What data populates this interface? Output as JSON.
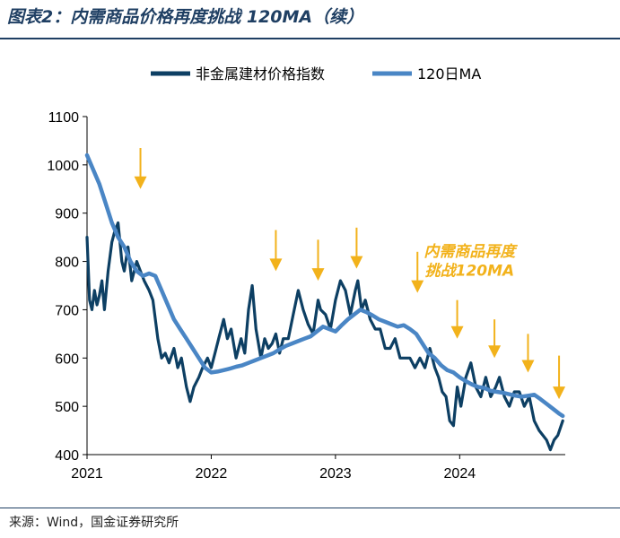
{
  "header": {
    "title": "图表2：内需商品价格再度挑战 120MA（续）"
  },
  "footer": {
    "source": "来源：Wind，国金证券研究所"
  },
  "colors": {
    "series_main": "#0d3f63",
    "series_ma": "#4a86c5",
    "arrow": "#f2b21b",
    "title": "#1f3f63"
  },
  "chart_data": {
    "type": "line",
    "title": "",
    "xlabel": "",
    "ylabel": "",
    "ylim": [
      400,
      1100
    ],
    "yticks": [
      400,
      500,
      600,
      700,
      800,
      900,
      1000,
      1100
    ],
    "xlim": [
      2021.0,
      2024.85
    ],
    "xticks": [
      {
        "value": 2021,
        "label": "2021"
      },
      {
        "value": 2022,
        "label": "2022"
      },
      {
        "value": 2023,
        "label": "2023"
      },
      {
        "value": 2024,
        "label": "2024"
      }
    ],
    "grid": false,
    "legend": "top-center",
    "series": [
      {
        "name": "非金属建材价格指数",
        "x": [
          2021.0,
          2021.02,
          2021.04,
          2021.06,
          2021.08,
          2021.1,
          2021.12,
          2021.14,
          2021.17,
          2021.2,
          2021.22,
          2021.25,
          2021.28,
          2021.3,
          2021.33,
          2021.36,
          2021.4,
          2021.43,
          2021.46,
          2021.5,
          2021.53,
          2021.57,
          2021.6,
          2021.63,
          2021.66,
          2021.7,
          2021.73,
          2021.76,
          2021.8,
          2021.83,
          2021.86,
          2021.9,
          2021.93,
          2021.97,
          2022.0,
          2022.03,
          2022.06,
          2022.1,
          2022.13,
          2022.16,
          2022.2,
          2022.24,
          2022.27,
          2022.3,
          2022.33,
          2022.36,
          2022.4,
          2022.43,
          2022.46,
          2022.49,
          2022.52,
          2022.55,
          2022.58,
          2022.62,
          2022.66,
          2022.7,
          2022.74,
          2022.78,
          2022.82,
          2022.86,
          2022.88,
          2022.92,
          2022.96,
          2023.0,
          2023.04,
          2023.08,
          2023.12,
          2023.16,
          2023.18,
          2023.21,
          2023.24,
          2023.28,
          2023.32,
          2023.36,
          2023.4,
          2023.44,
          2023.48,
          2023.52,
          2023.56,
          2023.6,
          2023.64,
          2023.68,
          2023.72,
          2023.76,
          2023.8,
          2023.83,
          2023.86,
          2023.89,
          2023.92,
          2023.95,
          2023.98,
          2024.01,
          2024.05,
          2024.09,
          2024.13,
          2024.17,
          2024.21,
          2024.25,
          2024.29,
          2024.32,
          2024.36,
          2024.4,
          2024.44,
          2024.48,
          2024.52,
          2024.56,
          2024.6,
          2024.64,
          2024.67,
          2024.7,
          2024.73,
          2024.76,
          2024.79,
          2024.83
        ],
        "y": [
          850,
          720,
          700,
          740,
          710,
          730,
          760,
          700,
          780,
          840,
          860,
          880,
          800,
          780,
          830,
          760,
          800,
          780,
          760,
          740,
          720,
          640,
          600,
          610,
          590,
          620,
          580,
          600,
          540,
          510,
          540,
          560,
          580,
          600,
          580,
          610,
          640,
          680,
          640,
          660,
          600,
          640,
          610,
          700,
          750,
          660,
          600,
          640,
          620,
          630,
          650,
          610,
          640,
          640,
          690,
          740,
          700,
          670,
          650,
          720,
          700,
          690,
          660,
          720,
          760,
          740,
          690,
          740,
          760,
          700,
          720,
          680,
          660,
          660,
          620,
          620,
          640,
          600,
          600,
          600,
          580,
          600,
          580,
          620,
          580,
          560,
          530,
          520,
          470,
          460,
          540,
          500,
          560,
          590,
          540,
          520,
          560,
          520,
          540,
          560,
          520,
          500,
          530,
          530,
          500,
          520,
          470,
          450,
          440,
          430,
          410,
          430,
          440,
          470
        ]
      },
      {
        "name": "120日MA",
        "x": [
          2021.0,
          2021.05,
          2021.1,
          2021.15,
          2021.2,
          2021.25,
          2021.3,
          2021.35,
          2021.4,
          2021.45,
          2021.5,
          2021.55,
          2021.6,
          2021.65,
          2021.7,
          2021.75,
          2021.8,
          2021.85,
          2021.9,
          2021.95,
          2022.0,
          2022.05,
          2022.1,
          2022.15,
          2022.2,
          2022.25,
          2022.3,
          2022.35,
          2022.4,
          2022.45,
          2022.5,
          2022.55,
          2022.6,
          2022.65,
          2022.7,
          2022.75,
          2022.8,
          2022.85,
          2022.9,
          2022.95,
          2023.0,
          2023.05,
          2023.1,
          2023.15,
          2023.2,
          2023.25,
          2023.3,
          2023.35,
          2023.4,
          2023.45,
          2023.5,
          2023.55,
          2023.6,
          2023.65,
          2023.7,
          2023.75,
          2023.8,
          2023.85,
          2023.9,
          2023.95,
          2024.0,
          2024.05,
          2024.1,
          2024.15,
          2024.2,
          2024.25,
          2024.3,
          2024.35,
          2024.4,
          2024.45,
          2024.5,
          2024.55,
          2024.6,
          2024.65,
          2024.7,
          2024.75,
          2024.8,
          2024.83
        ],
        "y": [
          1020,
          990,
          960,
          920,
          880,
          850,
          830,
          800,
          780,
          770,
          775,
          770,
          740,
          710,
          680,
          660,
          640,
          620,
          600,
          580,
          570,
          572,
          575,
          578,
          582,
          585,
          590,
          595,
          600,
          605,
          610,
          618,
          625,
          630,
          635,
          640,
          645,
          655,
          665,
          660,
          655,
          668,
          680,
          690,
          700,
          695,
          688,
          680,
          675,
          670,
          665,
          668,
          660,
          650,
          630,
          610,
          600,
          585,
          575,
          570,
          560,
          552,
          545,
          540,
          538,
          532,
          530,
          528,
          525,
          522,
          520,
          522,
          524,
          515,
          505,
          495,
          485,
          480
        ]
      }
    ],
    "annotations": [
      {
        "text": "内需商品再度",
        "x": 2024.08,
        "y": 810
      },
      {
        "text": "挑战120MA",
        "x": 2024.08,
        "y": 770
      }
    ],
    "arrows": [
      {
        "x": 2021.43,
        "y_top": 1035,
        "y_tip": 950
      },
      {
        "x": 2022.52,
        "y_top": 865,
        "y_tip": 780
      },
      {
        "x": 2022.86,
        "y_top": 845,
        "y_tip": 760
      },
      {
        "x": 2023.17,
        "y_top": 870,
        "y_tip": 785
      },
      {
        "x": 2023.66,
        "y_top": 820,
        "y_tip": 735
      },
      {
        "x": 2023.98,
        "y_top": 720,
        "y_tip": 640
      },
      {
        "x": 2024.28,
        "y_top": 680,
        "y_tip": 600
      },
      {
        "x": 2024.55,
        "y_top": 650,
        "y_tip": 570
      },
      {
        "x": 2024.8,
        "y_top": 605,
        "y_tip": 515
      }
    ]
  }
}
